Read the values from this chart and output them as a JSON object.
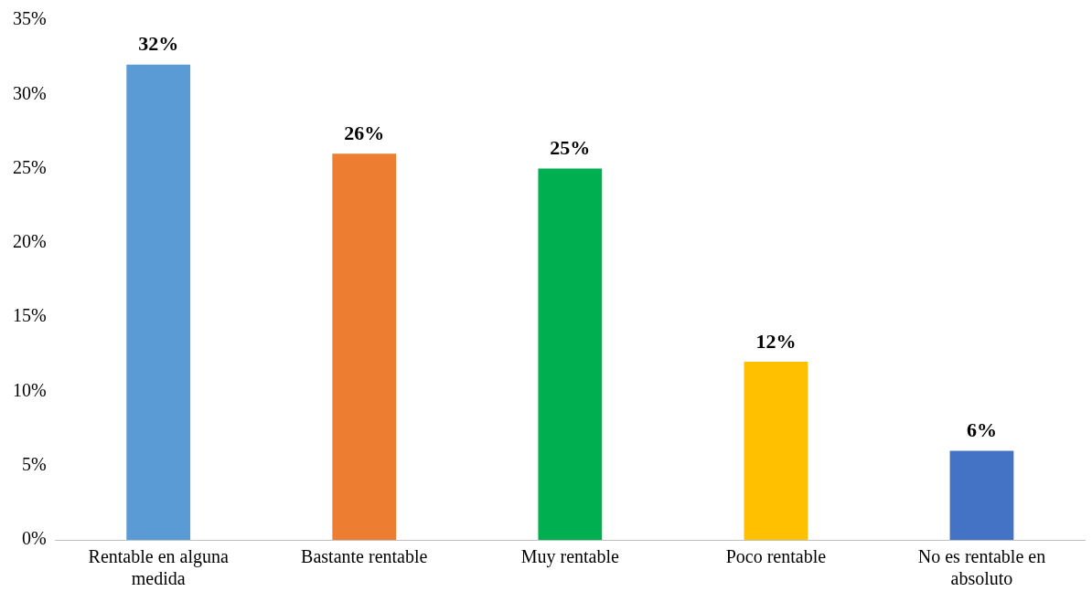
{
  "chart_data": {
    "type": "bar",
    "categories": [
      "Rentable en alguna medida",
      "Bastante rentable",
      "Muy rentable",
      "Poco rentable",
      "No es rentable en absoluto"
    ],
    "values": [
      32,
      26,
      25,
      12,
      6
    ],
    "colors": [
      "#5b9bd5",
      "#ed7d31",
      "#00b050",
      "#ffc000",
      "#4472c4"
    ],
    "value_labels": [
      "32%",
      "26%",
      "25%",
      "12%",
      "6%"
    ],
    "ylim": [
      0,
      35
    ],
    "yticks": [
      {
        "value": 0,
        "label": "0%"
      },
      {
        "value": 5,
        "label": "5%"
      },
      {
        "value": 10,
        "label": "10%"
      },
      {
        "value": 15,
        "label": "15%"
      },
      {
        "value": 20,
        "label": "20%"
      },
      {
        "value": 25,
        "label": "25%"
      },
      {
        "value": 30,
        "label": "30%"
      },
      {
        "value": 35,
        "label": "35%"
      }
    ],
    "grid": false,
    "legend": false
  }
}
